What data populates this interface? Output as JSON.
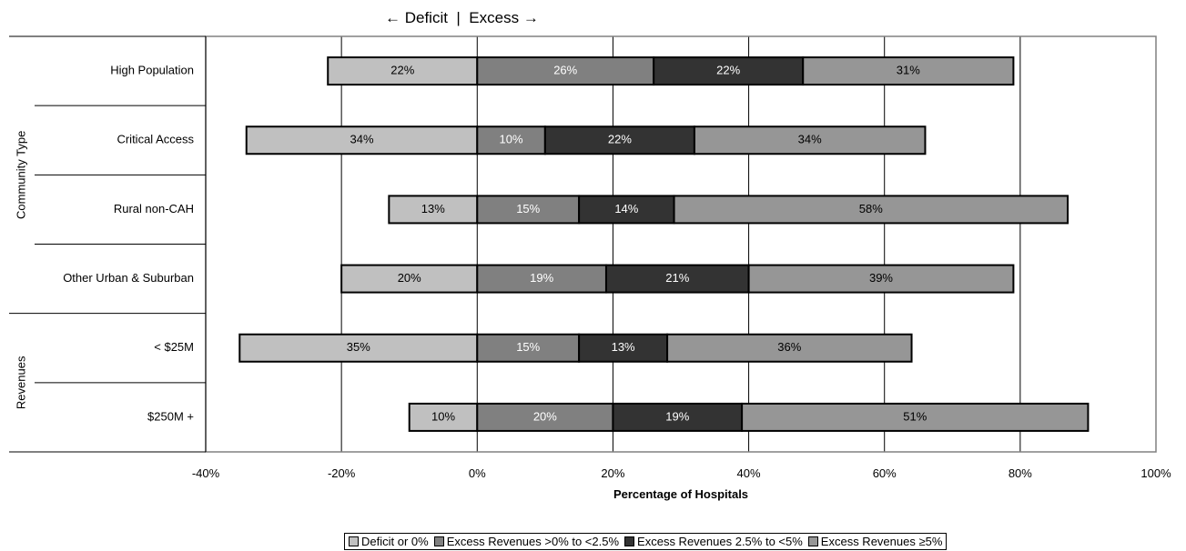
{
  "header": {
    "deficit_label": "← Deficit",
    "separator": "|",
    "excess_label": "Excess →"
  },
  "chart_data": {
    "type": "bar",
    "orientation": "horizontal",
    "stacked": true,
    "xlabel": "Percentage of Hospitals",
    "xlim": [
      -40,
      100
    ],
    "x_ticks": [
      -40,
      -20,
      0,
      20,
      40,
      60,
      80,
      100
    ],
    "x_tick_labels": [
      "-40%",
      "-20%",
      "0%",
      "20%",
      "40%",
      "60%",
      "80%",
      "100%"
    ],
    "grid": "vertical",
    "legend_position": "bottom",
    "groups": [
      {
        "label": "Community Type",
        "categories": [
          "High Population",
          "Critical Access",
          "Rural non-CAH",
          "Other Urban & Suburban"
        ]
      },
      {
        "label": "Revenues",
        "categories": [
          "< $25M",
          "$250M +"
        ]
      }
    ],
    "categories": [
      "High Population",
      "Critical Access",
      "Rural non-CAH",
      "Other Urban & Suburban",
      "< $25M",
      "$250M +"
    ],
    "series": [
      {
        "name": "Deficit or 0%",
        "color": "#c0c0c0",
        "label_color": "#000000",
        "direction": "negative",
        "values": [
          22,
          34,
          13,
          20,
          35,
          10
        ]
      },
      {
        "name": "Excess Revenues >0% to <2.5%",
        "color": "#808080",
        "label_color": "#ffffff",
        "direction": "positive",
        "values": [
          26,
          10,
          15,
          19,
          15,
          20
        ]
      },
      {
        "name": "Excess Revenues 2.5% to <5%",
        "color": "#333333",
        "label_color": "#ffffff",
        "direction": "positive",
        "values": [
          22,
          22,
          14,
          21,
          13,
          19
        ]
      },
      {
        "name": "Excess Revenues ≥5%",
        "color": "#969696",
        "label_color": "#000000",
        "direction": "positive",
        "values": [
          31,
          34,
          58,
          39,
          36,
          51
        ]
      }
    ],
    "value_suffix": "%"
  }
}
